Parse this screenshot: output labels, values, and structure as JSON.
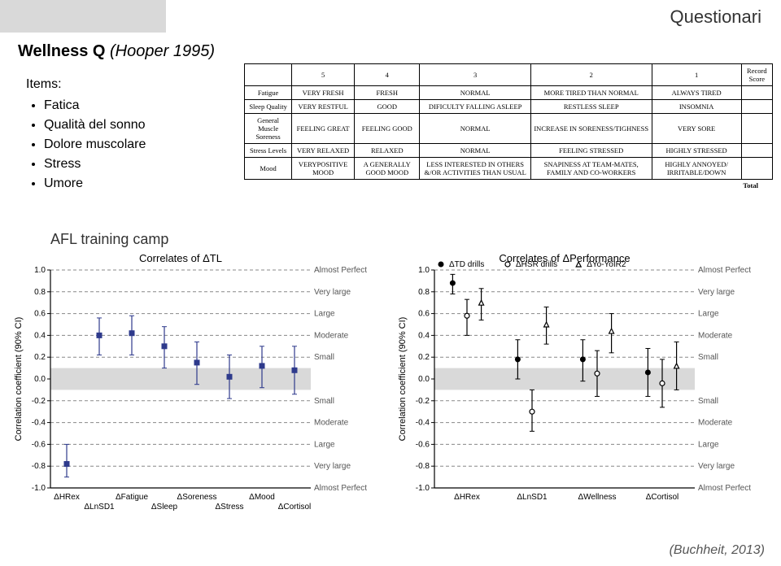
{
  "header": {
    "tab": "",
    "title": "Questionari"
  },
  "section": {
    "title_strong": "Wellness Q",
    "title_ital": "(Hooper 1995)"
  },
  "items": {
    "heading": "Items:",
    "list": [
      "Fatica",
      "Qualità del sonno",
      "Dolore muscolare",
      "Stress",
      "Umore"
    ]
  },
  "table": {
    "headers": [
      "",
      "5",
      "4",
      "3",
      "2",
      "1",
      "Record Score"
    ],
    "rows": [
      {
        "label": "Fatigue",
        "cells": [
          "VERY FRESH",
          "FRESH",
          "NORMAL",
          "MORE TIRED THAN NORMAL",
          "ALWAYS TIRED",
          ""
        ]
      },
      {
        "label": "Sleep Quality",
        "cells": [
          "VERY RESTFUL",
          "GOOD",
          "DIFICULTY FALLING ASLEEP",
          "RESTLESS SLEEP",
          "INSOMNIA",
          ""
        ]
      },
      {
        "label": "General Muscle Soreness",
        "cells": [
          "FEELING GREAT",
          "FEELING GOOD",
          "NORMAL",
          "INCREASE IN SORENESS/TIGHNESS",
          "VERY SORE",
          ""
        ]
      },
      {
        "label": "Stress Levels",
        "cells": [
          "VERY RELAXED",
          "RELAXED",
          "NORMAL",
          "FEELING STRESSED",
          "HIGHLY STRESSED",
          ""
        ]
      },
      {
        "label": "Mood",
        "cells": [
          "VERYPOSITIVE MOOD",
          "A GENERALLY GOOD MOOD",
          "LESS INTERESTED IN OTHERS &/OR ACTIVITIES THAN USUAL",
          "SNAPINESS AT TEAM-MATES, FAMILY AND CO-WORKERS",
          "HIGHLY ANNOYED/ IRRITABLE/DOWN",
          ""
        ]
      }
    ],
    "total_label": "Total"
  },
  "afl_label": "AFL training camp",
  "chart_left": {
    "title": "Correlates of ΔTL",
    "y_label": "Correlation coefficient (90% CI)",
    "ylim": [
      -1.0,
      1.0
    ],
    "ytick_step": 0.2,
    "x_categories": [
      "ΔHRex",
      "ΔLnSD1",
      "ΔFatigue",
      "ΔSleep",
      "ΔSoreness",
      "ΔStress",
      "ΔMood",
      "ΔCortisol"
    ],
    "x_stagger": [
      0,
      1,
      0,
      1,
      0,
      1,
      0,
      1
    ],
    "zones": [
      {
        "y": 1.0,
        "label": "Almost Perfect"
      },
      {
        "y": 0.8,
        "label": "Very large"
      },
      {
        "y": 0.6,
        "label": "Large"
      },
      {
        "y": 0.4,
        "label": "Moderate"
      },
      {
        "y": 0.2,
        "label": "Small"
      },
      {
        "y": -0.2,
        "label": "Small"
      },
      {
        "y": -0.4,
        "label": "Moderate"
      },
      {
        "y": -0.6,
        "label": "Large"
      },
      {
        "y": -0.8,
        "label": "Very large"
      },
      {
        "y": -1.0,
        "label": "Almost Perfect"
      }
    ],
    "grey_band": [
      -0.1,
      0.1
    ],
    "series": [
      {
        "marker": "square",
        "color": "#2e3a8c",
        "points": [
          {
            "xi": 0,
            "y": -0.78,
            "lo": -0.9,
            "hi": -0.6
          },
          {
            "xi": 1,
            "y": 0.4,
            "lo": 0.22,
            "hi": 0.56
          },
          {
            "xi": 2,
            "y": 0.42,
            "lo": 0.22,
            "hi": 0.58
          },
          {
            "xi": 3,
            "y": 0.3,
            "lo": 0.1,
            "hi": 0.48
          },
          {
            "xi": 4,
            "y": 0.15,
            "lo": -0.05,
            "hi": 0.34
          },
          {
            "xi": 5,
            "y": 0.02,
            "lo": -0.18,
            "hi": 0.22
          },
          {
            "xi": 6,
            "y": 0.12,
            "lo": -0.08,
            "hi": 0.3
          },
          {
            "xi": 7,
            "y": 0.08,
            "lo": -0.14,
            "hi": 0.3
          }
        ]
      }
    ],
    "marker_size": 6,
    "bg": "#ffffff",
    "axis_color": "#000000",
    "dash_color": "#888888"
  },
  "chart_right": {
    "title": "Correlates of ΔPerformance",
    "y_label": "Correlation coefficient (90% CI)",
    "ylim": [
      -1.0,
      1.0
    ],
    "ytick_step": 0.2,
    "x_categories": [
      "ΔHRex",
      "ΔLnSD1",
      "ΔWellness",
      "ΔCortisol"
    ],
    "x_stagger": [
      0,
      0,
      0,
      0
    ],
    "zones": [
      {
        "y": 1.0,
        "label": "Almost Perfect"
      },
      {
        "y": 0.8,
        "label": "Very large"
      },
      {
        "y": 0.6,
        "label": "Large"
      },
      {
        "y": 0.4,
        "label": "Moderate"
      },
      {
        "y": 0.2,
        "label": "Small"
      },
      {
        "y": -0.2,
        "label": "Small"
      },
      {
        "y": -0.4,
        "label": "Moderate"
      },
      {
        "y": -0.6,
        "label": "Large"
      },
      {
        "y": -0.8,
        "label": "Very large"
      },
      {
        "y": -1.0,
        "label": "Almost Perfect"
      }
    ],
    "grey_band": [
      -0.1,
      0.1
    ],
    "legend": [
      {
        "label": "ΔTD drills",
        "marker": "filled-circle",
        "color": "#000000"
      },
      {
        "label": "ΔHSR drills",
        "marker": "open-circle",
        "color": "#000000"
      },
      {
        "label": "ΔYo-YoIR2",
        "marker": "open-triangle",
        "color": "#000000"
      }
    ],
    "series": [
      {
        "marker": "filled-circle",
        "color": "#000000",
        "points": [
          {
            "xi": 0,
            "y": 0.88,
            "lo": 0.78,
            "hi": 0.96
          },
          {
            "xi": 1,
            "y": 0.18,
            "lo": 0.0,
            "hi": 0.36
          },
          {
            "xi": 2,
            "y": 0.18,
            "lo": -0.02,
            "hi": 0.36
          },
          {
            "xi": 3,
            "y": 0.06,
            "lo": -0.16,
            "hi": 0.28
          }
        ]
      },
      {
        "marker": "open-circle",
        "color": "#000000",
        "points": [
          {
            "xi": 0,
            "y": 0.58,
            "lo": 0.4,
            "hi": 0.73
          },
          {
            "xi": 1,
            "y": -0.3,
            "lo": -0.48,
            "hi": -0.1
          },
          {
            "xi": 2,
            "y": 0.05,
            "lo": -0.16,
            "hi": 0.26
          },
          {
            "xi": 3,
            "y": -0.04,
            "lo": -0.26,
            "hi": 0.18
          }
        ]
      },
      {
        "marker": "open-triangle",
        "color": "#000000",
        "points": [
          {
            "xi": 0,
            "y": 0.7,
            "lo": 0.54,
            "hi": 0.83
          },
          {
            "xi": 1,
            "y": 0.5,
            "lo": 0.32,
            "hi": 0.66
          },
          {
            "xi": 2,
            "y": 0.44,
            "lo": 0.24,
            "hi": 0.6
          },
          {
            "xi": 3,
            "y": 0.12,
            "lo": -0.1,
            "hi": 0.34
          }
        ]
      }
    ],
    "marker_size": 6,
    "bg": "#ffffff",
    "axis_color": "#000000",
    "dash_color": "#888888"
  },
  "citation": "(Buchheit, 2013)"
}
